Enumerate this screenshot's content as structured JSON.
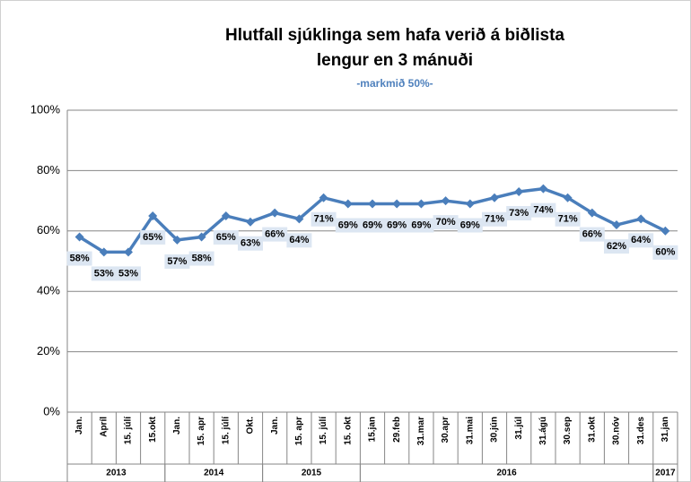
{
  "chart_data": {
    "type": "line",
    "title_lines": [
      "Hlutfall sjúklinga sem hafa verið á biðlista",
      "lengur en 3 mánuði"
    ],
    "subtitle": "-markmið 50%-",
    "categories": [
      "Jan.",
      "Apríl",
      "15. júlí",
      "15.okt",
      "Jan.",
      "15. apr",
      "15. júlí",
      "Okt.",
      "Jan.",
      "15. apr",
      "15. júlí",
      "15. okt",
      "15.jan",
      "29.feb",
      "31.mar",
      "30.apr",
      "31.mai",
      "30.jún",
      "31.júl",
      "31.ágú",
      "30.sep",
      "31.okt",
      "30.nóv",
      "31.des",
      "31.jan"
    ],
    "year_groups": [
      {
        "label": "2013",
        "span": 4
      },
      {
        "label": "2014",
        "span": 4
      },
      {
        "label": "2015",
        "span": 4
      },
      {
        "label": "2016",
        "span": 12
      },
      {
        "label": "2017",
        "span": 1
      }
    ],
    "series": [
      {
        "name": "Hlutfall",
        "color": "#4a7ebb",
        "values": [
          58,
          53,
          53,
          65,
          57,
          58,
          65,
          63,
          66,
          64,
          71,
          69,
          69,
          69,
          69,
          70,
          69,
          71,
          73,
          74,
          71,
          66,
          62,
          64,
          60
        ],
        "value_labels": [
          "58%",
          "53%",
          "53%",
          "65%",
          "57%",
          "58%",
          "65%",
          "63%",
          "66%",
          "64%",
          "71%",
          "69%",
          "69%",
          "69%",
          "69%",
          "70%",
          "69%",
          "71%",
          "73%",
          "74%",
          "71%",
          "66%",
          "62%",
          "64%",
          "60%"
        ]
      }
    ],
    "ylim": [
      0,
      100
    ],
    "yticks": [
      {
        "value": 0,
        "label": "0%"
      },
      {
        "value": 20,
        "label": "20%"
      },
      {
        "value": 40,
        "label": "40%"
      },
      {
        "value": 60,
        "label": "60%"
      },
      {
        "value": 80,
        "label": "80%"
      },
      {
        "value": 100,
        "label": "100%"
      }
    ],
    "grid": true
  }
}
